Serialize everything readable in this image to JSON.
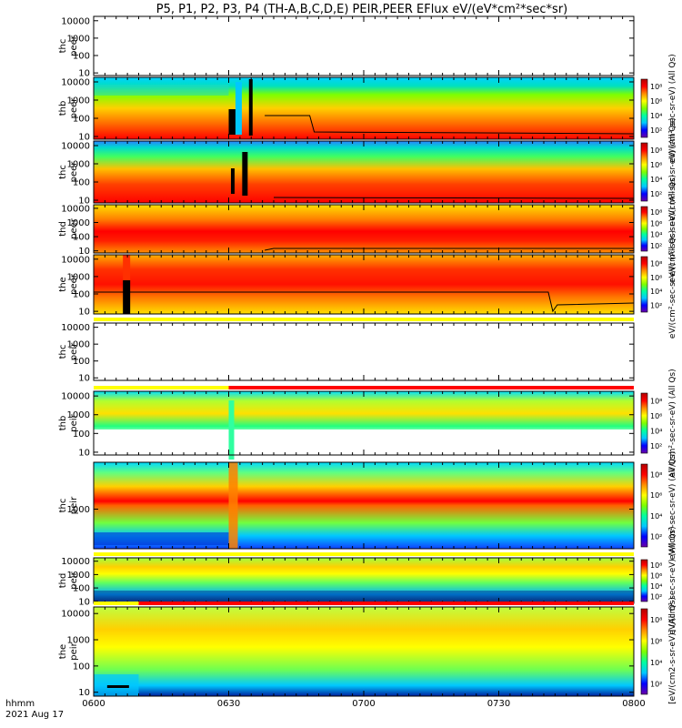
{
  "chart_data": {
    "type": "heatmap",
    "title": "P5, P1, P2, P3, P4 (TH-A,B,C,D,E) PEIR,PEER EFlux eV/(eV*cm²*sec*sr)",
    "x_ticks": [
      "0600",
      "0630",
      "0700",
      "0730",
      "0800"
    ],
    "x_range_minutes": [
      0,
      120
    ],
    "x_label_left": "hhmm",
    "date_label": "2021 Aug 17",
    "colorscale": [
      "#6a00a8",
      "#0000ff",
      "#00c8ff",
      "#00ffa0",
      "#7dff00",
      "#ffff00",
      "#ff8c00",
      "#ff0000",
      "#b40000"
    ],
    "colorbar_ticks": [
      "10²",
      "10⁴",
      "10⁶",
      "10⁸"
    ],
    "colorbar_label": "eV/(cm²-sec-sr-eV) (All Qs)",
    "colorbar_label_bottom": "[eV/(cm2-s-sr-eV)] (All Qs)",
    "panels": [
      {
        "label1": "thc",
        "label2": "peer",
        "y_ticks": [
          "10",
          "100",
          "1000",
          "10000"
        ],
        "has_data": false,
        "has_colorbar": false
      },
      {
        "label1": "thb",
        "label2": "peer",
        "y_ticks": [
          "10",
          "100",
          "1000",
          "10000"
        ],
        "has_data": true,
        "has_colorbar": true
      },
      {
        "label1": "thc",
        "label2": "peer",
        "y_ticks": [
          "10",
          "100",
          "1000",
          "10000"
        ],
        "has_data": true,
        "has_colorbar": true
      },
      {
        "label1": "thd",
        "label2": "peer",
        "y_ticks": [
          "10",
          "100",
          "1000",
          "10000"
        ],
        "has_data": true,
        "has_colorbar": true
      },
      {
        "label1": "the",
        "label2": "peer",
        "y_ticks": [
          "10",
          "100",
          "1000",
          "10000"
        ],
        "has_data": true,
        "has_colorbar": true
      },
      {
        "label1": "thc",
        "label2": "peir",
        "y_ticks": [
          "10",
          "100",
          "1000",
          "10000"
        ],
        "has_data": false,
        "has_colorbar": false
      },
      {
        "label1": "thb",
        "label2": "peir",
        "y_ticks": [
          "10",
          "100",
          "1000",
          "10000"
        ],
        "has_data": true,
        "has_colorbar": true
      },
      {
        "label1": "thc",
        "label2": "peir",
        "y_ticks": [
          "1000"
        ],
        "has_data": true,
        "has_colorbar": true
      },
      {
        "label1": "thd",
        "label2": "peir",
        "y_ticks": [
          "10",
          "100",
          "1000",
          "10000"
        ],
        "has_data": true,
        "has_colorbar": true
      },
      {
        "label1": "the",
        "label2": "peir",
        "y_ticks": [
          "10",
          "100",
          "1000",
          "10000"
        ],
        "has_data": true,
        "has_colorbar": true
      }
    ],
    "flag_bars": [
      {
        "above_panel": 5,
        "segments": [
          {
            "from_min": 0,
            "to_min": 120,
            "color": "#ffff00"
          }
        ]
      },
      {
        "above_panel": 6,
        "segments": [
          {
            "from_min": 0,
            "to_min": 30,
            "color": "#ffff00"
          },
          {
            "from_min": 30,
            "to_min": 120,
            "color": "#ff0000"
          }
        ]
      },
      {
        "above_panel": 8,
        "segments": [
          {
            "from_min": 0,
            "to_min": 120,
            "color": "#ffff00"
          }
        ]
      },
      {
        "above_panel": 9,
        "segments": [
          {
            "from_min": 0,
            "to_min": 10,
            "color": "#ffff00"
          },
          {
            "from_min": 10,
            "to_min": 120,
            "color": "#ff0000"
          }
        ]
      }
    ]
  }
}
